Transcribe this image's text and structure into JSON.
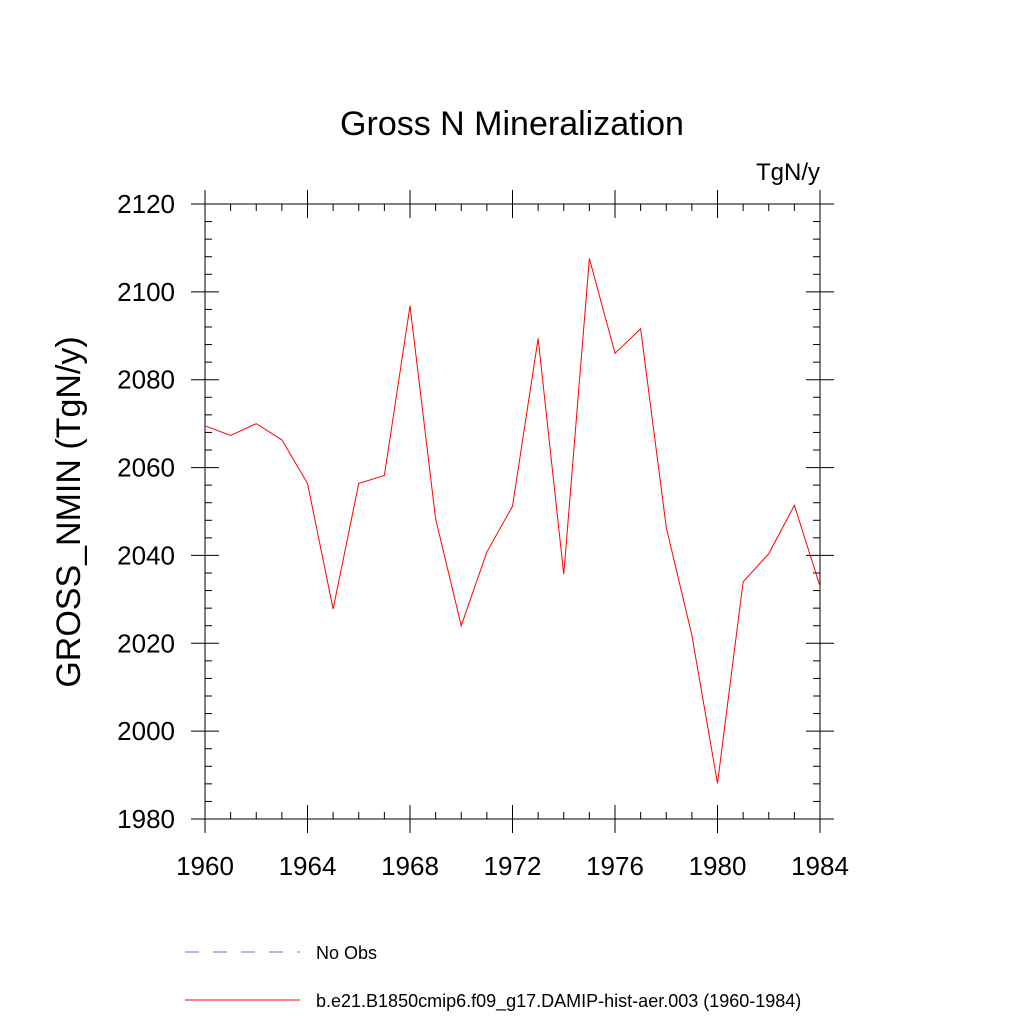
{
  "chart_data": {
    "type": "line",
    "title": "Gross N Mineralization",
    "units_label": "TgN/y",
    "xlabel": "",
    "ylabel": "GROSS_NMIN  (TgN/y)",
    "xlim": [
      1960,
      1984
    ],
    "ylim": [
      1980,
      2120
    ],
    "x_ticks": [
      1960,
      1964,
      1968,
      1972,
      1976,
      1980,
      1984
    ],
    "y_ticks": [
      1980,
      2000,
      2020,
      2040,
      2060,
      2080,
      2100,
      2120
    ],
    "x_minor_step": 1,
    "y_minor_step": 4,
    "grid": false,
    "legend_position": "bottom",
    "series": [
      {
        "name": "b.e21.B1850cmip6.f09_g17.DAMIP-hist-aer.003 (1960-1984)",
        "color": "#ff0000",
        "line_style": "solid",
        "x": [
          1960,
          1961,
          1962,
          1963,
          1964,
          1965,
          1966,
          1967,
          1968,
          1969,
          1970,
          1971,
          1972,
          1973,
          1974,
          1975,
          1976,
          1977,
          1978,
          1979,
          1980,
          1981,
          1982,
          1983,
          1984
        ],
        "y": [
          2069.5,
          2067.3,
          2070,
          2066.3,
          2056.4,
          2027.8,
          2056.4,
          2058.2,
          2096.8,
          2048.3,
          2024,
          2040.8,
          2051.2,
          2089.4,
          2035.7,
          2107.6,
          2086,
          2091.6,
          2046.4,
          2021.8,
          1988.1,
          2034,
          2040.4,
          2051.4,
          2033
        ]
      }
    ],
    "legend": [
      {
        "label": "No Obs",
        "color": "#7b68ee",
        "line_style": "dashed"
      },
      {
        "label": "b.e21.B1850cmip6.f09_g17.DAMIP-hist-aer.003 (1960-1984)",
        "color": "#ff0000",
        "line_style": "solid"
      }
    ]
  }
}
